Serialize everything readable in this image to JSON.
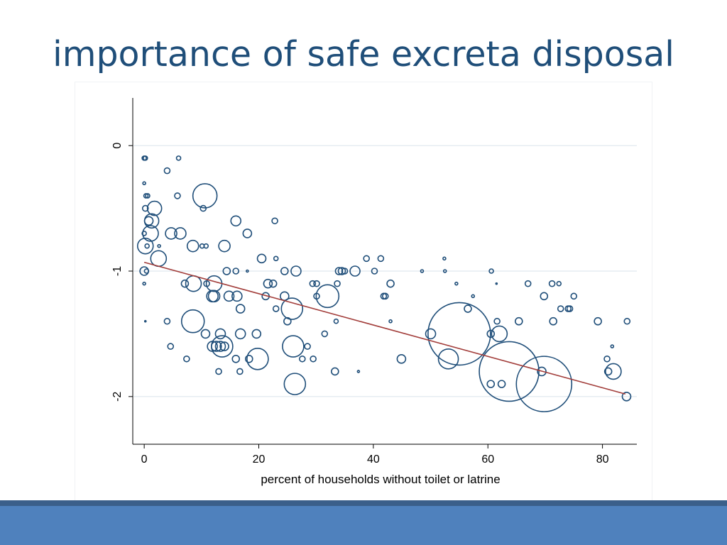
{
  "slide": {
    "title": "importance of safe excreta disposal"
  },
  "colors": {
    "title": "#1f4e79",
    "marker_stroke": "#1f4e79",
    "fit_line": "#a23d3a",
    "grid": "#e6ecf2",
    "footer": "#4f81bd",
    "footer_top": "#3b5f8a"
  },
  "chart_data": {
    "type": "scatter",
    "title": "",
    "xlabel": "percent of households without toilet or latrine",
    "ylabel": "",
    "xlim": [
      -2,
      86
    ],
    "ylim": [
      -2.38,
      0.38
    ],
    "xticks": [
      0,
      20,
      40,
      60,
      80
    ],
    "yticks": [
      0,
      -1,
      -2
    ],
    "grid": "horizontal",
    "marker": "hollow circle, radius proportional to weight",
    "fit_line": {
      "x": [
        0,
        84
      ],
      "y": [
        -0.93,
        -1.98
      ]
    },
    "points": [
      {
        "x": 0.0,
        "y": -0.1,
        "r": 3
      },
      {
        "x": 0.2,
        "y": -0.1,
        "r": 3
      },
      {
        "x": 6.0,
        "y": -0.1,
        "r": 3
      },
      {
        "x": 4.0,
        "y": -0.2,
        "r": 4
      },
      {
        "x": 0.0,
        "y": -0.3,
        "r": 2
      },
      {
        "x": 0.3,
        "y": -0.4,
        "r": 3
      },
      {
        "x": 0.6,
        "y": -0.4,
        "r": 3
      },
      {
        "x": 5.8,
        "y": -0.4,
        "r": 4
      },
      {
        "x": 10.6,
        "y": -0.4,
        "r": 17
      },
      {
        "x": 0.2,
        "y": -0.5,
        "r": 4
      },
      {
        "x": 1.8,
        "y": -0.5,
        "r": 10
      },
      {
        "x": 10.3,
        "y": -0.5,
        "r": 4
      },
      {
        "x": 0.8,
        "y": -0.6,
        "r": 6
      },
      {
        "x": 1.3,
        "y": -0.6,
        "r": 10
      },
      {
        "x": 16.0,
        "y": -0.6,
        "r": 7
      },
      {
        "x": 22.8,
        "y": -0.6,
        "r": 4
      },
      {
        "x": 0.0,
        "y": -0.7,
        "r": 3
      },
      {
        "x": 1.1,
        "y": -0.7,
        "r": 11
      },
      {
        "x": 4.7,
        "y": -0.7,
        "r": 8
      },
      {
        "x": 6.3,
        "y": -0.7,
        "r": 8
      },
      {
        "x": 18.0,
        "y": -0.7,
        "r": 6
      },
      {
        "x": 0.5,
        "y": -0.8,
        "r": 3
      },
      {
        "x": 0.2,
        "y": -0.8,
        "r": 11
      },
      {
        "x": 2.6,
        "y": -0.8,
        "r": 2
      },
      {
        "x": 8.5,
        "y": -0.8,
        "r": 8
      },
      {
        "x": 10.1,
        "y": -0.8,
        "r": 3
      },
      {
        "x": 10.8,
        "y": -0.8,
        "r": 3
      },
      {
        "x": 14.0,
        "y": -0.8,
        "r": 8
      },
      {
        "x": 2.5,
        "y": -0.9,
        "r": 11
      },
      {
        "x": 20.5,
        "y": -0.9,
        "r": 6
      },
      {
        "x": 23.0,
        "y": -0.9,
        "r": 3
      },
      {
        "x": 38.8,
        "y": -0.9,
        "r": 4
      },
      {
        "x": 41.3,
        "y": -0.9,
        "r": 4
      },
      {
        "x": 52.4,
        "y": -0.9,
        "r": 2
      },
      {
        "x": 0.0,
        "y": -1.0,
        "r": 6
      },
      {
        "x": 0.4,
        "y": -1.0,
        "r": 3
      },
      {
        "x": 14.4,
        "y": -1.0,
        "r": 5
      },
      {
        "x": 16.0,
        "y": -1.0,
        "r": 4
      },
      {
        "x": 18.0,
        "y": -1.0,
        "r": 1.5
      },
      {
        "x": 24.5,
        "y": -1.0,
        "r": 5
      },
      {
        "x": 26.5,
        "y": -1.0,
        "r": 7
      },
      {
        "x": 34.0,
        "y": -1.0,
        "r": 5
      },
      {
        "x": 34.5,
        "y": -1.0,
        "r": 5
      },
      {
        "x": 35.0,
        "y": -1.0,
        "r": 4
      },
      {
        "x": 36.8,
        "y": -1.0,
        "r": 7
      },
      {
        "x": 40.2,
        "y": -1.0,
        "r": 4
      },
      {
        "x": 48.5,
        "y": -1.0,
        "r": 2
      },
      {
        "x": 52.5,
        "y": -1.0,
        "r": 2
      },
      {
        "x": 60.6,
        "y": -1.0,
        "r": 3
      },
      {
        "x": 0.0,
        "y": -1.1,
        "r": 2
      },
      {
        "x": 7.1,
        "y": -1.1,
        "r": 5
      },
      {
        "x": 8.6,
        "y": -1.1,
        "r": 11
      },
      {
        "x": 10.9,
        "y": -1.1,
        "r": 4
      },
      {
        "x": 12.2,
        "y": -1.1,
        "r": 11
      },
      {
        "x": 21.6,
        "y": -1.1,
        "r": 6
      },
      {
        "x": 22.5,
        "y": -1.1,
        "r": 5
      },
      {
        "x": 29.4,
        "y": -1.1,
        "r": 4
      },
      {
        "x": 30.1,
        "y": -1.1,
        "r": 4
      },
      {
        "x": 33.7,
        "y": -1.1,
        "r": 4
      },
      {
        "x": 43.0,
        "y": -1.1,
        "r": 5
      },
      {
        "x": 54.5,
        "y": -1.1,
        "r": 2
      },
      {
        "x": 61.5,
        "y": -1.1,
        "r": 1
      },
      {
        "x": 67.0,
        "y": -1.1,
        "r": 4
      },
      {
        "x": 71.2,
        "y": -1.1,
        "r": 4
      },
      {
        "x": 72.4,
        "y": -1.1,
        "r": 3
      },
      {
        "x": 11.9,
        "y": -1.2,
        "r": 8
      },
      {
        "x": 12.2,
        "y": -1.2,
        "r": 8
      },
      {
        "x": 14.8,
        "y": -1.2,
        "r": 7
      },
      {
        "x": 16.2,
        "y": -1.2,
        "r": 7
      },
      {
        "x": 21.2,
        "y": -1.2,
        "r": 5
      },
      {
        "x": 24.5,
        "y": -1.2,
        "r": 6
      },
      {
        "x": 30.1,
        "y": -1.2,
        "r": 4
      },
      {
        "x": 32.0,
        "y": -1.2,
        "r": 16
      },
      {
        "x": 41.8,
        "y": -1.2,
        "r": 4
      },
      {
        "x": 42.1,
        "y": -1.2,
        "r": 4
      },
      {
        "x": 57.4,
        "y": -1.2,
        "r": 2
      },
      {
        "x": 69.8,
        "y": -1.2,
        "r": 5
      },
      {
        "x": 75.0,
        "y": -1.2,
        "r": 4
      },
      {
        "x": 16.8,
        "y": -1.3,
        "r": 6
      },
      {
        "x": 23.0,
        "y": -1.3,
        "r": 4
      },
      {
        "x": 25.8,
        "y": -1.3,
        "r": 15
      },
      {
        "x": 56.5,
        "y": -1.3,
        "r": 5
      },
      {
        "x": 72.7,
        "y": -1.3,
        "r": 4
      },
      {
        "x": 74.0,
        "y": -1.3,
        "r": 4
      },
      {
        "x": 74.3,
        "y": -1.3,
        "r": 4
      },
      {
        "x": 0.2,
        "y": -1.4,
        "r": 1
      },
      {
        "x": 4.0,
        "y": -1.4,
        "r": 4
      },
      {
        "x": 8.5,
        "y": -1.4,
        "r": 16
      },
      {
        "x": 25.0,
        "y": -1.4,
        "r": 5
      },
      {
        "x": 33.5,
        "y": -1.4,
        "r": 3
      },
      {
        "x": 43.0,
        "y": -1.4,
        "r": 2
      },
      {
        "x": 61.6,
        "y": -1.4,
        "r": 4
      },
      {
        "x": 65.4,
        "y": -1.4,
        "r": 5
      },
      {
        "x": 71.4,
        "y": -1.4,
        "r": 5
      },
      {
        "x": 79.2,
        "y": -1.4,
        "r": 5
      },
      {
        "x": 84.3,
        "y": -1.4,
        "r": 4
      },
      {
        "x": 10.7,
        "y": -1.5,
        "r": 6
      },
      {
        "x": 13.3,
        "y": -1.5,
        "r": 7
      },
      {
        "x": 16.8,
        "y": -1.5,
        "r": 7
      },
      {
        "x": 19.6,
        "y": -1.5,
        "r": 6
      },
      {
        "x": 31.5,
        "y": -1.5,
        "r": 4
      },
      {
        "x": 50.0,
        "y": -1.5,
        "r": 7
      },
      {
        "x": 55.0,
        "y": -1.5,
        "r": 44
      },
      {
        "x": 60.5,
        "y": -1.5,
        "r": 5
      },
      {
        "x": 62.0,
        "y": -1.5,
        "r": 11
      },
      {
        "x": 4.6,
        "y": -1.6,
        "r": 4
      },
      {
        "x": 11.9,
        "y": -1.6,
        "r": 7
      },
      {
        "x": 12.6,
        "y": -1.6,
        "r": 7
      },
      {
        "x": 13.3,
        "y": -1.6,
        "r": 7
      },
      {
        "x": 14.0,
        "y": -1.6,
        "r": 6
      },
      {
        "x": 13.6,
        "y": -1.6,
        "r": 15
      },
      {
        "x": 26.0,
        "y": -1.6,
        "r": 15
      },
      {
        "x": 28.5,
        "y": -1.6,
        "r": 4
      },
      {
        "x": 81.7,
        "y": -1.6,
        "r": 2
      },
      {
        "x": 7.4,
        "y": -1.7,
        "r": 4
      },
      {
        "x": 16.0,
        "y": -1.7,
        "r": 5
      },
      {
        "x": 18.3,
        "y": -1.7,
        "r": 5
      },
      {
        "x": 19.8,
        "y": -1.7,
        "r": 15
      },
      {
        "x": 27.6,
        "y": -1.7,
        "r": 4
      },
      {
        "x": 29.5,
        "y": -1.7,
        "r": 4
      },
      {
        "x": 44.9,
        "y": -1.7,
        "r": 6
      },
      {
        "x": 53.1,
        "y": -1.7,
        "r": 14
      },
      {
        "x": 80.8,
        "y": -1.7,
        "r": 4
      },
      {
        "x": 13.0,
        "y": -1.8,
        "r": 4
      },
      {
        "x": 16.7,
        "y": -1.8,
        "r": 4
      },
      {
        "x": 33.3,
        "y": -1.8,
        "r": 5
      },
      {
        "x": 37.4,
        "y": -1.8,
        "r": 1.5
      },
      {
        "x": 63.7,
        "y": -1.8,
        "r": 42
      },
      {
        "x": 69.4,
        "y": -1.8,
        "r": 6
      },
      {
        "x": 81.0,
        "y": -1.8,
        "r": 5
      },
      {
        "x": 81.9,
        "y": -1.8,
        "r": 11
      },
      {
        "x": 26.3,
        "y": -1.9,
        "r": 15
      },
      {
        "x": 60.5,
        "y": -1.9,
        "r": 5
      },
      {
        "x": 62.4,
        "y": -1.9,
        "r": 5
      },
      {
        "x": 69.8,
        "y": -1.9,
        "r": 39
      },
      {
        "x": 84.2,
        "y": -2.0,
        "r": 6
      }
    ]
  }
}
